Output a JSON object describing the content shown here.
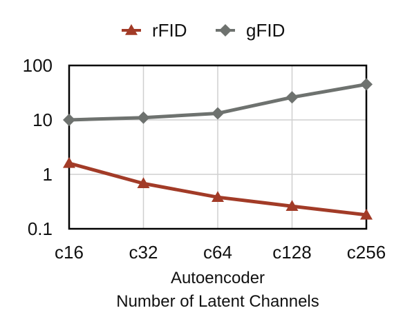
{
  "chart_data": {
    "type": "line",
    "title": "",
    "categories": [
      "c16",
      "c32",
      "c64",
      "c128",
      "c256"
    ],
    "xlabel_lines": [
      "Autoencoder",
      "Number of Latent Channels"
    ],
    "ylabel": "",
    "yscale": "log",
    "ylim": [
      0.1,
      100
    ],
    "yticks": [
      {
        "value": 0.1,
        "label": "0.1"
      },
      {
        "value": 1,
        "label": "1"
      },
      {
        "value": 10,
        "label": "10"
      },
      {
        "value": 100,
        "label": "100"
      }
    ],
    "grid": true,
    "legend_position": "top",
    "series": [
      {
        "name": "rFID",
        "marker": "triangle",
        "color": "#a23b27",
        "values": [
          1.6,
          0.68,
          0.38,
          0.26,
          0.18
        ]
      },
      {
        "name": "gFID",
        "marker": "diamond",
        "color": "#6e726f",
        "values": [
          10,
          11,
          13.2,
          26,
          45
        ]
      }
    ]
  }
}
